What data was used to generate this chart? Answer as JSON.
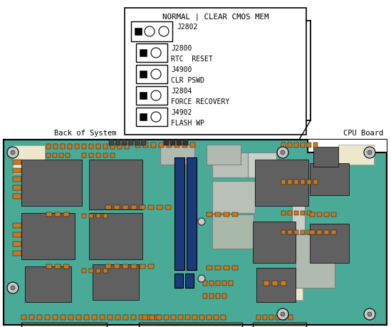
{
  "title": "NORMAL | CLEAR CMOS MEM",
  "board_color": "#4aaa98",
  "board_edge_color": "#000000",
  "bg_color": "#ffffff",
  "jumpers": [
    {
      "label": "J2802",
      "sub": "",
      "has_three": true
    },
    {
      "label": "J2800",
      "sub": "RTC  RESET",
      "has_three": false
    },
    {
      "label": "J4900",
      "sub": "CLR PSWD",
      "has_three": false
    },
    {
      "label": "J2804",
      "sub": "FORCE RECOVERY",
      "has_three": false
    },
    {
      "label": "J4902",
      "sub": "FLASH WP",
      "has_three": false
    }
  ],
  "dark_gray": "#606060",
  "med_gray": "#888888",
  "silver": "#b8c0b8",
  "silver2": "#c8d0c8",
  "orange": "#c87820",
  "blue_strip": "#1a3a7a",
  "cream": "#f0e8cc",
  "connector_color": "#f0e8cc",
  "screw_color": "#c8c8c8"
}
